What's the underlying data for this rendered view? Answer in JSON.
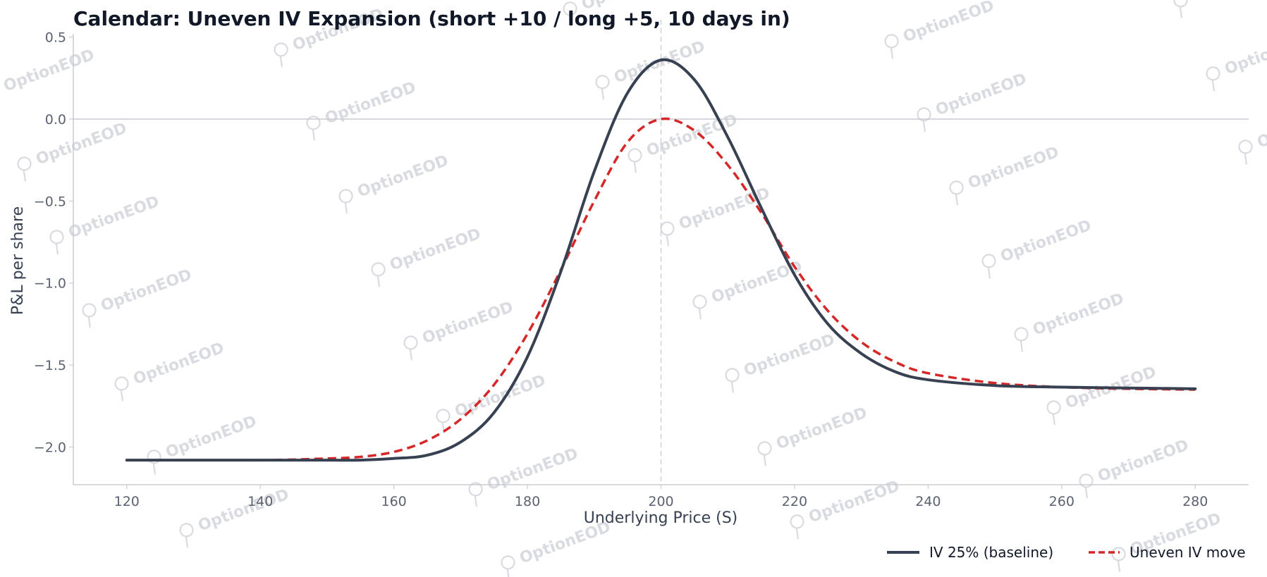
{
  "chart_data": {
    "type": "line",
    "title": "Calendar: Uneven IV Expansion (short +10 / long +5, 10 days in)",
    "xlabel": "Underlying Price (S)",
    "ylabel": "P&L per share",
    "xlim": [
      112,
      288
    ],
    "ylim": [
      -2.23,
      0.52
    ],
    "xticks": [
      120,
      140,
      160,
      180,
      200,
      220,
      240,
      260,
      280
    ],
    "yticks": [
      0.5,
      0.0,
      -0.5,
      -1.0,
      -1.5,
      -2.0
    ],
    "ytick_labels": [
      "0.5",
      "0.0",
      "−0.5",
      "−1.0",
      "−1.5",
      "−2.0"
    ],
    "reference_lines": {
      "horizontal_y": 0.0,
      "vertical_x": 200
    },
    "grid": false,
    "legend_position": "bottom-right",
    "watermark": "OptionEOD",
    "series": [
      {
        "name": "IV 25% (baseline)",
        "color": "#374151",
        "style": "solid",
        "x": [
          120,
          140,
          150,
          155,
          160,
          165,
          170,
          175,
          180,
          185,
          190,
          195,
          200,
          205,
          210,
          215,
          220,
          225,
          230,
          235,
          240,
          250,
          260,
          270,
          280
        ],
        "y": [
          -2.08,
          -2.08,
          -2.08,
          -2.08,
          -2.07,
          -2.05,
          -1.97,
          -1.79,
          -1.45,
          -0.93,
          -0.32,
          0.16,
          0.36,
          0.24,
          -0.11,
          -0.54,
          -0.95,
          -1.25,
          -1.43,
          -1.54,
          -1.59,
          -1.625,
          -1.635,
          -1.64,
          -1.645
        ]
      },
      {
        "name": "Uneven IV move",
        "color": "#d62728",
        "style": "dashed",
        "x": [
          120,
          140,
          150,
          155,
          160,
          165,
          170,
          175,
          180,
          185,
          190,
          195,
          200,
          205,
          210,
          215,
          220,
          225,
          230,
          235,
          240,
          250,
          260,
          270,
          280
        ],
        "y": [
          -2.08,
          -2.08,
          -2.07,
          -2.06,
          -2.03,
          -1.96,
          -1.83,
          -1.62,
          -1.31,
          -0.92,
          -0.5,
          -0.14,
          0.0,
          -0.07,
          -0.28,
          -0.57,
          -0.9,
          -1.17,
          -1.36,
          -1.48,
          -1.55,
          -1.61,
          -1.635,
          -1.645,
          -1.65
        ]
      }
    ]
  }
}
